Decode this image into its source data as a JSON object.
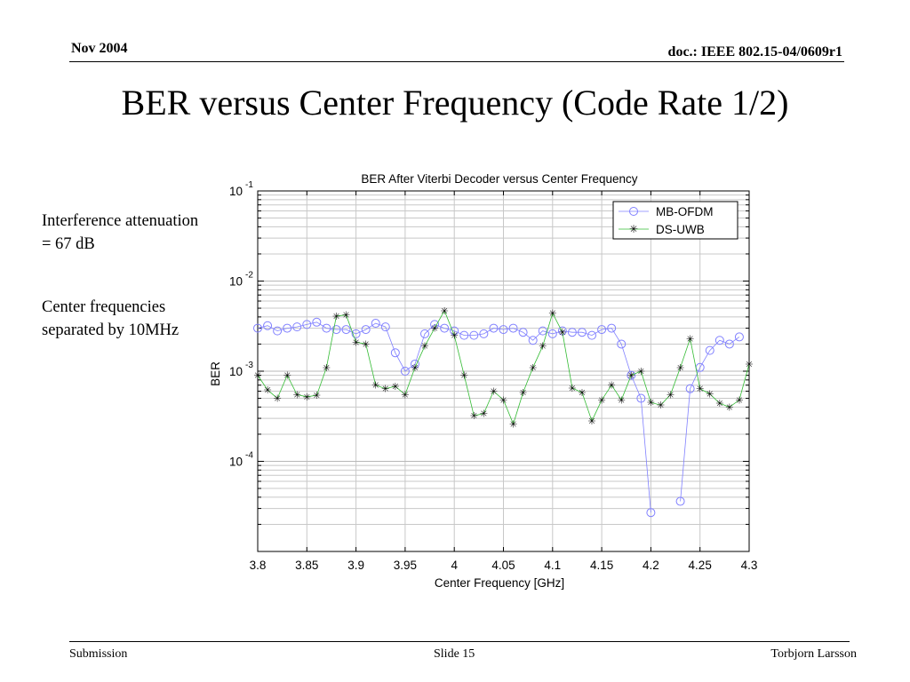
{
  "header": {
    "date": "Nov 2004",
    "doc": "doc.: IEEE 802.15-04/0609r1"
  },
  "slide_title": "BER versus Center Frequency (Code Rate 1/2)",
  "notes": [
    "Interference attenuation = 67 dB",
    "Center frequencies separated by 10MHz"
  ],
  "footer": {
    "left": "Submission",
    "center": "Slide 15",
    "right": "Torbjorn Larsson"
  },
  "colors": {
    "mb": "#8080ff",
    "ds": "#33bb33",
    "grid": "#c8c8c8"
  },
  "chart_data": {
    "type": "line",
    "title": "BER After Viterbi Decoder versus Center Frequency",
    "xlabel": "Center Frequency [GHz]",
    "ylabel": "BER",
    "xlim": [
      3.8,
      4.3
    ],
    "ylim": [
      1e-05,
      0.1
    ],
    "yscale": "log",
    "grid": true,
    "legend_position": "top-right",
    "xticks": [
      "3.8",
      "3.85",
      "3.9",
      "3.95",
      "4",
      "4.05",
      "4.1",
      "4.15",
      "4.2",
      "4.25",
      "4.3"
    ],
    "yticks": [
      {
        "base": "10",
        "exp": "-1",
        "value": 0.1
      },
      {
        "base": "10",
        "exp": "-2",
        "value": 0.01
      },
      {
        "base": "10",
        "exp": "-3",
        "value": 0.001
      },
      {
        "base": "10",
        "exp": "-4",
        "value": 0.0001
      }
    ],
    "x": [
      3.8,
      3.81,
      3.82,
      3.83,
      3.84,
      3.85,
      3.86,
      3.87,
      3.88,
      3.89,
      3.9,
      3.91,
      3.92,
      3.93,
      3.94,
      3.95,
      3.96,
      3.97,
      3.98,
      3.99,
      4.0,
      4.01,
      4.02,
      4.03,
      4.04,
      4.05,
      4.06,
      4.07,
      4.08,
      4.09,
      4.1,
      4.11,
      4.12,
      4.13,
      4.14,
      4.15,
      4.16,
      4.17,
      4.18,
      4.19,
      4.2,
      4.21,
      4.22,
      4.23,
      4.24,
      4.25,
      4.26,
      4.27,
      4.28,
      4.29,
      4.3
    ],
    "series": [
      {
        "name": "MB-OFDM",
        "marker": "circle",
        "values": [
          0.003,
          0.0032,
          0.0028,
          0.003,
          0.0031,
          0.0033,
          0.0035,
          0.003,
          0.0029,
          0.0029,
          0.0026,
          0.0029,
          0.0034,
          0.0031,
          0.0016,
          0.001,
          0.0012,
          0.0026,
          0.0033,
          0.003,
          0.0028,
          0.0025,
          0.0025,
          0.0026,
          0.003,
          0.0029,
          0.003,
          0.0027,
          0.0022,
          0.0028,
          0.0026,
          0.0028,
          0.0027,
          0.0027,
          0.0025,
          0.0029,
          0.003,
          0.002,
          0.0009,
          0.0005,
          2.7e-05,
          null,
          null,
          3.6e-05,
          0.00064,
          0.0011,
          0.0017,
          0.0022,
          0.002,
          0.0024,
          null
        ]
      },
      {
        "name": "DS-UWB",
        "marker": "star",
        "values": [
          0.0009,
          0.00062,
          0.0005,
          0.0009,
          0.00055,
          0.00052,
          0.00054,
          0.0011,
          0.0041,
          0.0042,
          0.0021,
          0.002,
          0.0007,
          0.00064,
          0.00068,
          0.00055,
          0.0011,
          0.0019,
          0.003,
          0.0047,
          0.0025,
          0.0009,
          0.00032,
          0.00034,
          0.0006,
          0.00048,
          0.00026,
          0.00058,
          0.0011,
          0.0019,
          0.0044,
          0.0027,
          0.00065,
          0.00058,
          0.00028,
          0.00048,
          0.0007,
          0.00048,
          0.0009,
          0.001,
          0.00045,
          0.00042,
          0.00055,
          0.0011,
          0.0023,
          0.00064,
          0.00056,
          0.00044,
          0.0004,
          0.00048,
          0.0012
        ]
      }
    ]
  }
}
